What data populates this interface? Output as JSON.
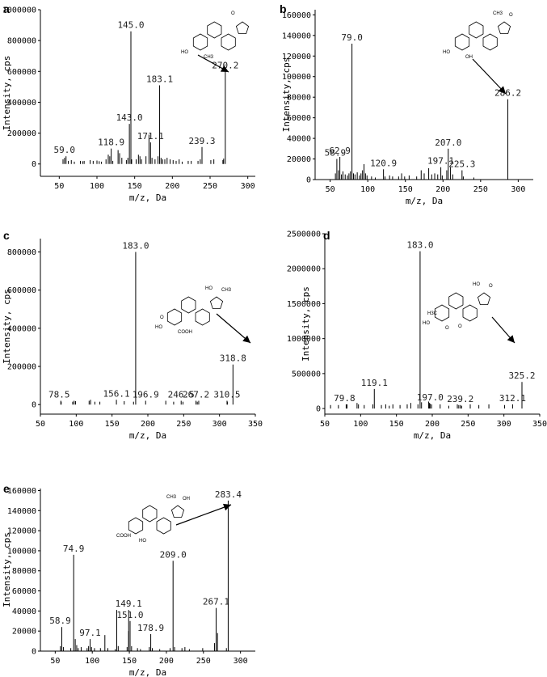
{
  "chart_data": [
    {
      "panel": "a",
      "type": "bar",
      "xlabel": "m/z, Da",
      "ylabel": "Intensity, cps",
      "xlim": [
        25,
        310
      ],
      "ylim": [
        -80000,
        1000000
      ],
      "xticks": [
        50,
        100,
        150,
        200,
        250,
        300
      ],
      "yticks": [
        0,
        200000,
        400000,
        600000,
        800000,
        1000000
      ],
      "structure_labels": [
        "HO",
        "CH3",
        "O"
      ],
      "major_peaks": [
        {
          "x": 59.0,
          "y": 50000,
          "label": "59.0"
        },
        {
          "x": 118.9,
          "y": 100000,
          "label": "118.9"
        },
        {
          "x": 143.0,
          "y": 260000,
          "label": "143.0"
        },
        {
          "x": 145.0,
          "y": 860000,
          "label": "145.0"
        },
        {
          "x": 171.1,
          "y": 140000,
          "label": "171.1"
        },
        {
          "x": 183.1,
          "y": 510000,
          "label": "183.1"
        },
        {
          "x": 239.3,
          "y": 110000,
          "label": "239.3"
        },
        {
          "x": 270.2,
          "y": 600000,
          "label": "270.2"
        }
      ],
      "minor_peaks": [
        {
          "x": 55,
          "y": 30000
        },
        {
          "x": 57,
          "y": 40000
        },
        {
          "x": 62,
          "y": 20000
        },
        {
          "x": 66,
          "y": 25000
        },
        {
          "x": 70,
          "y": 15000
        },
        {
          "x": 78,
          "y": 20000
        },
        {
          "x": 81,
          "y": 18000
        },
        {
          "x": 83,
          "y": 20000
        },
        {
          "x": 91,
          "y": 25000
        },
        {
          "x": 95,
          "y": 20000
        },
        {
          "x": 100,
          "y": 22000
        },
        {
          "x": 103,
          "y": 18000
        },
        {
          "x": 106,
          "y": 15000
        },
        {
          "x": 112,
          "y": 30000
        },
        {
          "x": 115,
          "y": 60000
        },
        {
          "x": 117,
          "y": 50000
        },
        {
          "x": 121,
          "y": 20000
        },
        {
          "x": 128,
          "y": 90000
        },
        {
          "x": 130,
          "y": 70000
        },
        {
          "x": 133,
          "y": 40000
        },
        {
          "x": 139,
          "y": 25000
        },
        {
          "x": 141,
          "y": 40000
        },
        {
          "x": 146,
          "y": 30000
        },
        {
          "x": 152,
          "y": 30000
        },
        {
          "x": 155,
          "y": 60000
        },
        {
          "x": 157,
          "y": 50000
        },
        {
          "x": 159,
          "y": 30000
        },
        {
          "x": 165,
          "y": 50000
        },
        {
          "x": 169,
          "y": 190000
        },
        {
          "x": 173,
          "y": 40000
        },
        {
          "x": 177,
          "y": 30000
        },
        {
          "x": 181,
          "y": 50000
        },
        {
          "x": 185,
          "y": 40000
        },
        {
          "x": 187,
          "y": 30000
        },
        {
          "x": 190,
          "y": 30000
        },
        {
          "x": 193,
          "y": 40000
        },
        {
          "x": 197,
          "y": 30000
        },
        {
          "x": 201,
          "y": 25000
        },
        {
          "x": 205,
          "y": 20000
        },
        {
          "x": 209,
          "y": 30000
        },
        {
          "x": 213,
          "y": 15000
        },
        {
          "x": 221,
          "y": 20000
        },
        {
          "x": 225,
          "y": 20000
        },
        {
          "x": 234,
          "y": 20000
        },
        {
          "x": 237,
          "y": 30000
        },
        {
          "x": 251,
          "y": 25000
        },
        {
          "x": 255,
          "y": 30000
        },
        {
          "x": 267,
          "y": 25000
        },
        {
          "x": 268,
          "y": 35000
        }
      ]
    },
    {
      "panel": "b",
      "type": "bar",
      "xlabel": "m/z, Da",
      "ylabel": "Intensity, cps",
      "xlim": [
        30,
        320
      ],
      "ylim": [
        0,
        165000
      ],
      "xticks": [
        50,
        100,
        150,
        200,
        250,
        300
      ],
      "yticks": [
        0,
        20000,
        40000,
        60000,
        80000,
        100000,
        120000,
        140000,
        160000
      ],
      "structure_labels": [
        "HO",
        "OH",
        "CH3",
        "O"
      ],
      "major_peaks": [
        {
          "x": 58.9,
          "y": 20000,
          "label": "58.9"
        },
        {
          "x": 62.9,
          "y": 22000,
          "label": "62.9"
        },
        {
          "x": 79.0,
          "y": 132000,
          "label": "79.0"
        },
        {
          "x": 120.9,
          "y": 10000,
          "label": "120.9"
        },
        {
          "x": 197.1,
          "y": 12000,
          "label": "197.1"
        },
        {
          "x": 207.0,
          "y": 30000,
          "label": "207.0"
        },
        {
          "x": 225.3,
          "y": 9000,
          "label": "225.3"
        },
        {
          "x": 286.2,
          "y": 78000,
          "label": "286.2"
        }
      ],
      "minor_peaks": [
        {
          "x": 57,
          "y": 6000
        },
        {
          "x": 61,
          "y": 9000
        },
        {
          "x": 65,
          "y": 5000
        },
        {
          "x": 67,
          "y": 8000
        },
        {
          "x": 70,
          "y": 5000
        },
        {
          "x": 73,
          "y": 4000
        },
        {
          "x": 75,
          "y": 6000
        },
        {
          "x": 77,
          "y": 8000
        },
        {
          "x": 81,
          "y": 6000
        },
        {
          "x": 83,
          "y": 5000
        },
        {
          "x": 86,
          "y": 7000
        },
        {
          "x": 89,
          "y": 4000
        },
        {
          "x": 91,
          "y": 6000
        },
        {
          "x": 93,
          "y": 9000
        },
        {
          "x": 95,
          "y": 15000
        },
        {
          "x": 97,
          "y": 6000
        },
        {
          "x": 99,
          "y": 4000
        },
        {
          "x": 105,
          "y": 3000
        },
        {
          "x": 110,
          "y": 2000
        },
        {
          "x": 123,
          "y": 3000
        },
        {
          "x": 129,
          "y": 4000
        },
        {
          "x": 133,
          "y": 3000
        },
        {
          "x": 141,
          "y": 3000
        },
        {
          "x": 145,
          "y": 6000
        },
        {
          "x": 149,
          "y": 3000
        },
        {
          "x": 155,
          "y": 4000
        },
        {
          "x": 165,
          "y": 3000
        },
        {
          "x": 171,
          "y": 9000
        },
        {
          "x": 175,
          "y": 6000
        },
        {
          "x": 181,
          "y": 11000
        },
        {
          "x": 185,
          "y": 5000
        },
        {
          "x": 189,
          "y": 6000
        },
        {
          "x": 193,
          "y": 5000
        },
        {
          "x": 199,
          "y": 4000
        },
        {
          "x": 205,
          "y": 9000
        },
        {
          "x": 210,
          "y": 12000
        },
        {
          "x": 213,
          "y": 5000
        },
        {
          "x": 227,
          "y": 3000
        },
        {
          "x": 241,
          "y": 2000
        }
      ]
    },
    {
      "panel": "c",
      "type": "bar",
      "xlabel": "m/z, Da",
      "ylabel": "Intensity, cps",
      "xlim": [
        50,
        350
      ],
      "ylim": [
        -50000,
        870000
      ],
      "xticks": [
        50,
        100,
        150,
        200,
        250,
        300,
        350
      ],
      "yticks": [
        0,
        200000,
        400000,
        600000,
        800000
      ],
      "structure_labels": [
        "HO",
        "COOH",
        "HO",
        "CH3",
        "O"
      ],
      "major_peaks": [
        {
          "x": 78.5,
          "y": 20000,
          "label": "78.5"
        },
        {
          "x": 156.1,
          "y": 25000,
          "label": "156.1"
        },
        {
          "x": 183.0,
          "y": 800000,
          "label": "183.0"
        },
        {
          "x": 196.9,
          "y": 20000,
          "label": "196.9"
        },
        {
          "x": 246.5,
          "y": 20000,
          "label": "246.5"
        },
        {
          "x": 267.2,
          "y": 20000,
          "label": "267.2"
        },
        {
          "x": 310.5,
          "y": 20000,
          "label": "310.5"
        },
        {
          "x": 318.8,
          "y": 210000,
          "label": "318.8"
        }
      ],
      "minor_peaks": [
        {
          "x": 79,
          "y": 15000
        },
        {
          "x": 95,
          "y": 15000
        },
        {
          "x": 97,
          "y": 20000
        },
        {
          "x": 99,
          "y": 18000
        },
        {
          "x": 118,
          "y": 20000
        },
        {
          "x": 120,
          "y": 25000
        },
        {
          "x": 126,
          "y": 15000
        },
        {
          "x": 133,
          "y": 15000
        },
        {
          "x": 167,
          "y": 18000
        },
        {
          "x": 180,
          "y": 15000
        },
        {
          "x": 225,
          "y": 20000
        },
        {
          "x": 236,
          "y": 15000
        },
        {
          "x": 249,
          "y": 15000
        },
        {
          "x": 269,
          "y": 15000
        },
        {
          "x": 271,
          "y": 20000
        },
        {
          "x": 311,
          "y": 15000
        }
      ]
    },
    {
      "panel": "d",
      "type": "bar",
      "xlabel": "m/z, Da",
      "ylabel": "Intensity, cps",
      "xlim": [
        50,
        350
      ],
      "ylim": [
        -80000,
        2500000
      ],
      "xticks": [
        50,
        100,
        150,
        200,
        250,
        300,
        350
      ],
      "yticks": [
        0,
        500000,
        1000000,
        1500000,
        2000000,
        2500000
      ],
      "structure_labels": [
        "HO",
        "O",
        "HO",
        "O",
        "H3C",
        "O"
      ],
      "major_peaks": [
        {
          "x": 79.8,
          "y": 60000,
          "label": "79.8"
        },
        {
          "x": 119.1,
          "y": 280000,
          "label": "119.1"
        },
        {
          "x": 183.0,
          "y": 2250000,
          "label": "183.0"
        },
        {
          "x": 197.0,
          "y": 70000,
          "label": "197.0"
        },
        {
          "x": 239.2,
          "y": 50000,
          "label": "239.2"
        },
        {
          "x": 312.1,
          "y": 60000,
          "label": "312.1"
        },
        {
          "x": 325.2,
          "y": 380000,
          "label": "325.2"
        }
      ],
      "minor_peaks": [
        {
          "x": 58,
          "y": 50000
        },
        {
          "x": 69,
          "y": 50000
        },
        {
          "x": 81,
          "y": 60000
        },
        {
          "x": 95,
          "y": 80000
        },
        {
          "x": 97,
          "y": 60000
        },
        {
          "x": 105,
          "y": 50000
        },
        {
          "x": 117,
          "y": 60000
        },
        {
          "x": 129,
          "y": 50000
        },
        {
          "x": 135,
          "y": 60000
        },
        {
          "x": 140,
          "y": 40000
        },
        {
          "x": 145,
          "y": 60000
        },
        {
          "x": 155,
          "y": 50000
        },
        {
          "x": 165,
          "y": 60000
        },
        {
          "x": 170,
          "y": 80000
        },
        {
          "x": 180,
          "y": 60000
        },
        {
          "x": 185,
          "y": 90000
        },
        {
          "x": 195,
          "y": 100000
        },
        {
          "x": 196,
          "y": 80000
        },
        {
          "x": 199,
          "y": 60000
        },
        {
          "x": 211,
          "y": 60000
        },
        {
          "x": 223,
          "y": 40000
        },
        {
          "x": 235,
          "y": 60000
        },
        {
          "x": 237,
          "y": 50000
        },
        {
          "x": 241,
          "y": 40000
        },
        {
          "x": 253,
          "y": 60000
        },
        {
          "x": 265,
          "y": 50000
        },
        {
          "x": 279,
          "y": 60000
        },
        {
          "x": 301,
          "y": 50000
        }
      ]
    },
    {
      "panel": "e",
      "type": "bar",
      "xlabel": "m/z, Da",
      "ylabel": "Intensity, cps",
      "xlim": [
        30,
        320
      ],
      "ylim": [
        0,
        162000
      ],
      "xticks": [
        50,
        100,
        150,
        200,
        250,
        300
      ],
      "yticks": [
        0,
        20000,
        40000,
        60000,
        80000,
        100000,
        120000,
        140000,
        160000
      ],
      "structure_labels": [
        "COOH",
        "HO",
        "CH3",
        "OH"
      ],
      "major_peaks": [
        {
          "x": 58.9,
          "y": 24000,
          "label": "58.9"
        },
        {
          "x": 74.9,
          "y": 96000,
          "label": "74.9"
        },
        {
          "x": 97.1,
          "y": 12000,
          "label": "97.1"
        },
        {
          "x": 149.1,
          "y": 41000,
          "label": "149.1"
        },
        {
          "x": 151.0,
          "y": 30000,
          "label": "151.0"
        },
        {
          "x": 178.9,
          "y": 17000,
          "label": "178.9"
        },
        {
          "x": 209.0,
          "y": 90000,
          "label": "209.0"
        },
        {
          "x": 267.1,
          "y": 43000,
          "label": "267.1"
        },
        {
          "x": 283.4,
          "y": 150000,
          "label": "283.4"
        }
      ],
      "minor_peaks": [
        {
          "x": 57,
          "y": 5000
        },
        {
          "x": 61,
          "y": 4000
        },
        {
          "x": 71,
          "y": 3000
        },
        {
          "x": 77,
          "y": 12000
        },
        {
          "x": 79,
          "y": 6000
        },
        {
          "x": 81,
          "y": 3000
        },
        {
          "x": 85,
          "y": 4000
        },
        {
          "x": 93,
          "y": 3000
        },
        {
          "x": 95,
          "y": 5000
        },
        {
          "x": 99,
          "y": 4000
        },
        {
          "x": 103,
          "y": 3000
        },
        {
          "x": 111,
          "y": 3000
        },
        {
          "x": 117,
          "y": 16000
        },
        {
          "x": 121,
          "y": 3000
        },
        {
          "x": 131,
          "y": 2000
        },
        {
          "x": 133,
          "y": 41000
        },
        {
          "x": 135,
          "y": 5000
        },
        {
          "x": 147,
          "y": 4000
        },
        {
          "x": 149,
          "y": 20000
        },
        {
          "x": 153,
          "y": 5000
        },
        {
          "x": 161,
          "y": 3000
        },
        {
          "x": 165,
          "y": 2000
        },
        {
          "x": 177,
          "y": 4000
        },
        {
          "x": 181,
          "y": 3000
        },
        {
          "x": 191,
          "y": 2000
        },
        {
          "x": 205,
          "y": 3000
        },
        {
          "x": 211,
          "y": 4000
        },
        {
          "x": 221,
          "y": 3000
        },
        {
          "x": 225,
          "y": 4000
        },
        {
          "x": 231,
          "y": 2000
        },
        {
          "x": 249,
          "y": 3000
        },
        {
          "x": 265,
          "y": 8000
        },
        {
          "x": 269,
          "y": 18000
        },
        {
          "x": 281,
          "y": 3000
        }
      ]
    }
  ]
}
